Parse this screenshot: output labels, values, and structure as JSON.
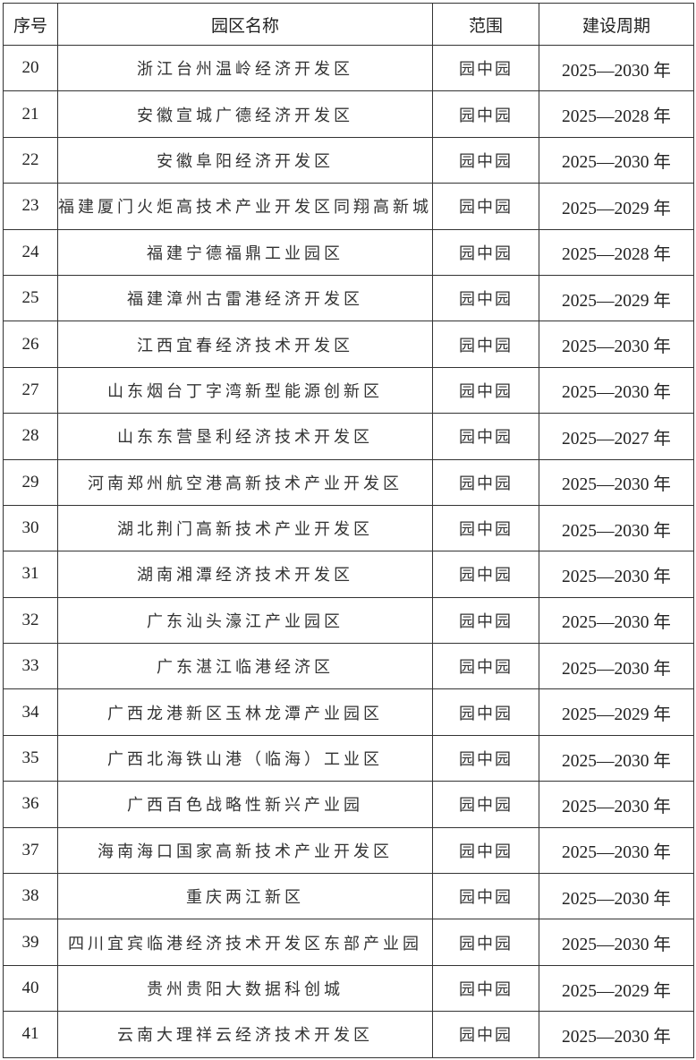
{
  "headers": {
    "index": "序号",
    "name": "园区名称",
    "scope": "范围",
    "period": "建设周期"
  },
  "rows": [
    {
      "index": "20",
      "name": "浙江台州温岭经济开发区",
      "scope": "园中园",
      "period": "2025—2030 年"
    },
    {
      "index": "21",
      "name": "安徽宣城广德经济开发区",
      "scope": "园中园",
      "period": "2025—2028 年"
    },
    {
      "index": "22",
      "name": "安徽阜阳经济开发区",
      "scope": "园中园",
      "period": "2025—2030 年"
    },
    {
      "index": "23",
      "name": "福建厦门火炬高技术产业开发区同翔高新城",
      "scope": "园中园",
      "period": "2025—2029 年"
    },
    {
      "index": "24",
      "name": "福建宁德福鼎工业园区",
      "scope": "园中园",
      "period": "2025—2028 年"
    },
    {
      "index": "25",
      "name": "福建漳州古雷港经济开发区",
      "scope": "园中园",
      "period": "2025—2029 年"
    },
    {
      "index": "26",
      "name": "江西宜春经济技术开发区",
      "scope": "园中园",
      "period": "2025—2030 年"
    },
    {
      "index": "27",
      "name": "山东烟台丁字湾新型能源创新区",
      "scope": "园中园",
      "period": "2025—2030 年"
    },
    {
      "index": "28",
      "name": "山东东营垦利经济技术开发区",
      "scope": "园中园",
      "period": "2025—2027 年"
    },
    {
      "index": "29",
      "name": "河南郑州航空港高新技术产业开发区",
      "scope": "园中园",
      "period": "2025—2030 年"
    },
    {
      "index": "30",
      "name": "湖北荆门高新技术产业开发区",
      "scope": "园中园",
      "period": "2025—2030 年"
    },
    {
      "index": "31",
      "name": "湖南湘潭经济技术开发区",
      "scope": "园中园",
      "period": "2025—2030 年"
    },
    {
      "index": "32",
      "name": "广东汕头濠江产业园区",
      "scope": "园中园",
      "period": "2025—2030 年"
    },
    {
      "index": "33",
      "name": "广东湛江临港经济区",
      "scope": "园中园",
      "period": "2025—2030 年"
    },
    {
      "index": "34",
      "name": "广西龙港新区玉林龙潭产业园区",
      "scope": "园中园",
      "period": "2025—2029 年"
    },
    {
      "index": "35",
      "name": "广西北海铁山港（临海）工业区",
      "scope": "园中园",
      "period": "2025—2030 年"
    },
    {
      "index": "36",
      "name": "广西百色战略性新兴产业园",
      "scope": "园中园",
      "period": "2025—2030 年"
    },
    {
      "index": "37",
      "name": "海南海口国家高新技术产业开发区",
      "scope": "园中园",
      "period": "2025—2030 年"
    },
    {
      "index": "38",
      "name": "重庆两江新区",
      "scope": "园中园",
      "period": "2025—2030 年"
    },
    {
      "index": "39",
      "name": "四川宜宾临港经济技术开发区东部产业园",
      "scope": "园中园",
      "period": "2025—2030 年"
    },
    {
      "index": "40",
      "name": "贵州贵阳大数据科创城",
      "scope": "园中园",
      "period": "2025—2029 年"
    },
    {
      "index": "41",
      "name": "云南大理祥云经济技术开发区",
      "scope": "园中园",
      "period": "2025—2030 年"
    }
  ]
}
